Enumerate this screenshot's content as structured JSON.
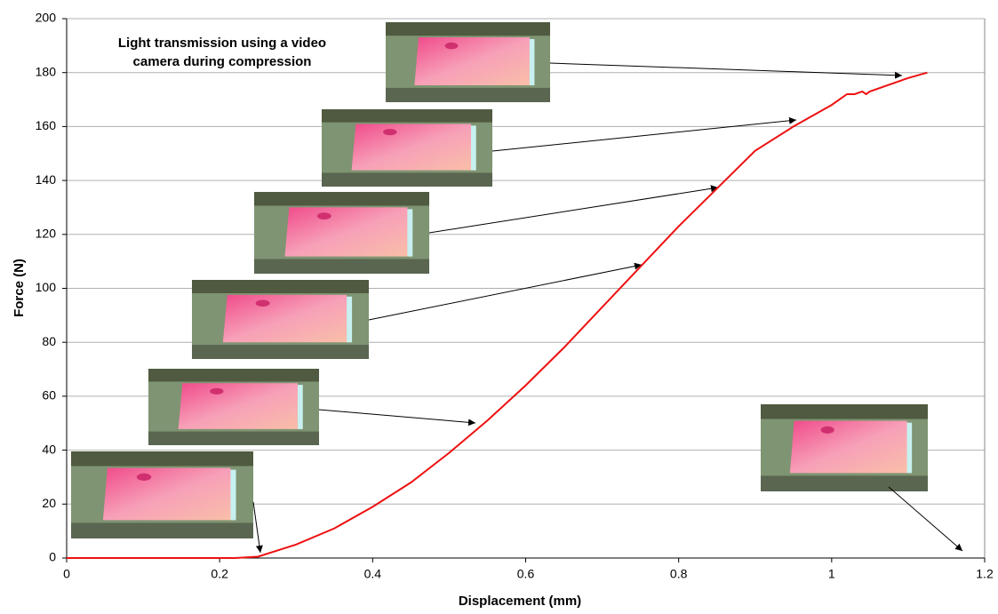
{
  "chart_data": {
    "type": "line",
    "annotation": [
      "Light transmission using a video",
      "camera during compression"
    ],
    "xlabel": "Displacement (mm)",
    "ylabel": "Force (N)",
    "x": [
      0,
      0.1,
      0.2,
      0.22,
      0.25,
      0.3,
      0.35,
      0.4,
      0.45,
      0.5,
      0.55,
      0.6,
      0.65,
      0.7,
      0.75,
      0.8,
      0.85,
      0.9,
      0.95,
      1.0,
      1.02,
      1.03,
      1.04,
      1.045,
      1.05,
      1.1,
      1.125
    ],
    "series": [
      {
        "color": "#ee1111",
        "values": [
          0,
          0,
          0,
          0,
          0.5,
          5,
          11,
          19,
          28,
          39,
          51,
          64,
          78,
          93,
          108,
          123,
          137,
          151,
          160,
          168,
          172,
          172,
          173,
          172,
          173,
          178,
          180
        ]
      }
    ],
    "xlim": [
      0,
      1.2
    ],
    "xticks": [
      0,
      0.2,
      0.4,
      0.6,
      0.8,
      1,
      1.2
    ],
    "ylim": [
      0,
      200
    ],
    "yticks": [
      0,
      20,
      40,
      60,
      80,
      100,
      120,
      140,
      160,
      180,
      200
    ],
    "grid": true
  }
}
